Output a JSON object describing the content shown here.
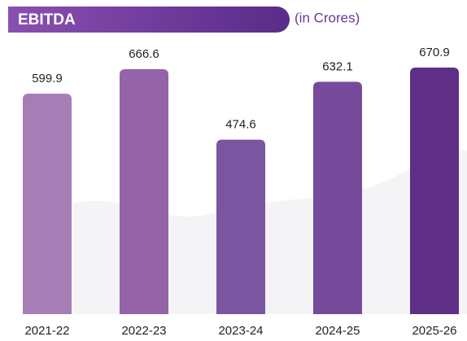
{
  "chart_data": {
    "type": "bar",
    "title": "EBITDA",
    "subtitle": "(in Crores)",
    "categories": [
      "2021-22",
      "2022-23",
      "2023-24",
      "2024-25",
      "2025-26"
    ],
    "values": [
      599.9,
      666.6,
      474.6,
      632.1,
      670.9
    ],
    "colors": [
      "#a77db5",
      "#9563a8",
      "#7a55a0",
      "#774a9b",
      "#5f2f87"
    ]
  }
}
